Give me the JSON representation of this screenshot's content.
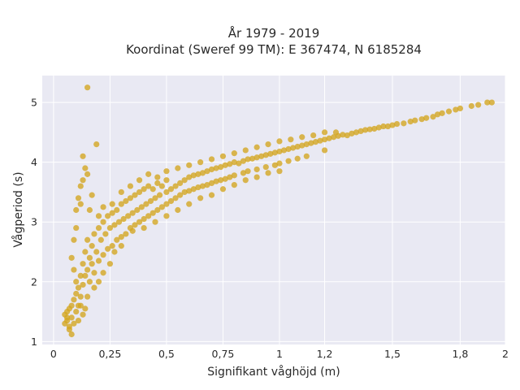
{
  "chart_data": {
    "type": "scatter",
    "title_lines": [
      "År 1979 - 2019",
      "Koordinat (Sweref 99 TM): E 367474, N 6185284"
    ],
    "xlabel": "Signifikant våghöjd (m)",
    "ylabel": "Vågperiod (s)",
    "xlim": [
      -0.05,
      2.0
    ],
    "ylim": [
      0.95,
      5.45
    ],
    "x_ticks": [
      0,
      0.25,
      0.5,
      0.75,
      1,
      1.2,
      1.5,
      1.8,
      2
    ],
    "x_tick_labels": [
      "0",
      "0,25",
      "0,5",
      "0,75",
      "1",
      "1,2",
      "1,5",
      "1,8",
      "2"
    ],
    "y_ticks": [
      1,
      2,
      3,
      4,
      5
    ],
    "y_tick_labels": [
      "1",
      "2",
      "3",
      "4",
      "5"
    ],
    "grid": true,
    "colors": {
      "plot_bg": "#e9e9f3",
      "grid": "#ffffff",
      "point": "#d4a51e"
    },
    "points": [
      [
        0.05,
        1.45
      ],
      [
        0.05,
        1.3
      ],
      [
        0.06,
        1.5
      ],
      [
        0.06,
        1.35
      ],
      [
        0.07,
        1.25
      ],
      [
        0.07,
        1.55
      ],
      [
        0.08,
        1.4
      ],
      [
        0.08,
        1.6
      ],
      [
        0.09,
        1.7
      ],
      [
        0.09,
        1.3
      ],
      [
        0.1,
        1.5
      ],
      [
        0.1,
        1.8
      ],
      [
        0.1,
        2.0
      ],
      [
        0.11,
        1.9
      ],
      [
        0.11,
        1.6
      ],
      [
        0.12,
        2.1
      ],
      [
        0.12,
        1.75
      ],
      [
        0.13,
        2.3
      ],
      [
        0.13,
        1.95
      ],
      [
        0.14,
        2.5
      ],
      [
        0.14,
        2.1
      ],
      [
        0.15,
        2.7
      ],
      [
        0.15,
        2.2
      ],
      [
        0.16,
        2.4
      ],
      [
        0.16,
        2.0
      ],
      [
        0.17,
        2.6
      ],
      [
        0.17,
        2.3
      ],
      [
        0.18,
        2.8
      ],
      [
        0.18,
        2.15
      ],
      [
        0.19,
        2.5
      ],
      [
        0.2,
        2.9
      ],
      [
        0.2,
        2.35
      ],
      [
        0.21,
        2.7
      ],
      [
        0.22,
        3.0
      ],
      [
        0.22,
        2.45
      ],
      [
        0.23,
        2.8
      ],
      [
        0.24,
        3.1
      ],
      [
        0.24,
        2.55
      ],
      [
        0.25,
        2.9
      ],
      [
        0.26,
        3.15
      ],
      [
        0.26,
        2.6
      ],
      [
        0.27,
        2.95
      ],
      [
        0.28,
        3.2
      ],
      [
        0.28,
        2.7
      ],
      [
        0.29,
        3.0
      ],
      [
        0.3,
        3.3
      ],
      [
        0.3,
        2.75
      ],
      [
        0.31,
        3.05
      ],
      [
        0.32,
        3.35
      ],
      [
        0.32,
        2.8
      ],
      [
        0.33,
        3.1
      ],
      [
        0.34,
        3.4
      ],
      [
        0.34,
        2.9
      ],
      [
        0.35,
        3.15
      ],
      [
        0.36,
        3.45
      ],
      [
        0.36,
        2.95
      ],
      [
        0.37,
        3.2
      ],
      [
        0.38,
        3.5
      ],
      [
        0.38,
        3.0
      ],
      [
        0.39,
        3.25
      ],
      [
        0.4,
        3.55
      ],
      [
        0.4,
        3.05
      ],
      [
        0.41,
        3.3
      ],
      [
        0.42,
        3.6
      ],
      [
        0.42,
        3.1
      ],
      [
        0.43,
        3.35
      ],
      [
        0.44,
        3.55
      ],
      [
        0.44,
        3.15
      ],
      [
        0.45,
        3.4
      ],
      [
        0.46,
        3.65
      ],
      [
        0.46,
        3.2
      ],
      [
        0.47,
        3.45
      ],
      [
        0.48,
        3.6
      ],
      [
        0.48,
        3.25
      ],
      [
        0.5,
        3.5
      ],
      [
        0.5,
        3.7
      ],
      [
        0.5,
        3.3
      ],
      [
        0.52,
        3.55
      ],
      [
        0.52,
        3.35
      ],
      [
        0.54,
        3.6
      ],
      [
        0.54,
        3.4
      ],
      [
        0.56,
        3.65
      ],
      [
        0.56,
        3.45
      ],
      [
        0.58,
        3.7
      ],
      [
        0.58,
        3.5
      ],
      [
        0.6,
        3.75
      ],
      [
        0.6,
        3.52
      ],
      [
        0.62,
        3.78
      ],
      [
        0.62,
        3.55
      ],
      [
        0.64,
        3.8
      ],
      [
        0.64,
        3.58
      ],
      [
        0.66,
        3.82
      ],
      [
        0.66,
        3.6
      ],
      [
        0.68,
        3.85
      ],
      [
        0.68,
        3.62
      ],
      [
        0.7,
        3.88
      ],
      [
        0.7,
        3.65
      ],
      [
        0.72,
        3.9
      ],
      [
        0.72,
        3.68
      ],
      [
        0.74,
        3.92
      ],
      [
        0.74,
        3.7
      ],
      [
        0.76,
        3.95
      ],
      [
        0.76,
        3.72
      ],
      [
        0.78,
        3.97
      ],
      [
        0.78,
        3.75
      ],
      [
        0.8,
        4.0
      ],
      [
        0.8,
        3.78
      ],
      [
        0.82,
        3.98
      ],
      [
        0.84,
        4.02
      ],
      [
        0.84,
        3.82
      ],
      [
        0.86,
        4.05
      ],
      [
        0.86,
        3.85
      ],
      [
        0.88,
        4.06
      ],
      [
        0.9,
        4.08
      ],
      [
        0.9,
        3.88
      ],
      [
        0.92,
        4.1
      ],
      [
        0.94,
        4.12
      ],
      [
        0.94,
        3.92
      ],
      [
        0.96,
        4.14
      ],
      [
        0.98,
        4.16
      ],
      [
        0.98,
        3.95
      ],
      [
        1.0,
        4.18
      ],
      [
        1.0,
        3.98
      ],
      [
        1.02,
        4.2
      ],
      [
        1.04,
        4.22
      ],
      [
        1.04,
        4.02
      ],
      [
        1.06,
        4.24
      ],
      [
        1.08,
        4.26
      ],
      [
        1.08,
        4.06
      ],
      [
        1.1,
        4.28
      ],
      [
        1.12,
        4.3
      ],
      [
        1.12,
        4.1
      ],
      [
        1.14,
        4.32
      ],
      [
        1.16,
        4.34
      ],
      [
        1.18,
        4.36
      ],
      [
        1.2,
        4.38
      ],
      [
        1.2,
        4.2
      ],
      [
        1.22,
        4.4
      ],
      [
        1.24,
        4.42
      ],
      [
        1.26,
        4.44
      ],
      [
        1.28,
        4.46
      ],
      [
        1.3,
        4.45
      ],
      [
        1.32,
        4.48
      ],
      [
        1.34,
        4.5
      ],
      [
        1.36,
        4.52
      ],
      [
        1.38,
        4.54
      ],
      [
        1.4,
        4.55
      ],
      [
        1.42,
        4.56
      ],
      [
        1.44,
        4.58
      ],
      [
        1.46,
        4.6
      ],
      [
        1.48,
        4.6
      ],
      [
        1.5,
        4.62
      ],
      [
        1.52,
        4.64
      ],
      [
        1.55,
        4.65
      ],
      [
        1.58,
        4.68
      ],
      [
        1.6,
        4.7
      ],
      [
        1.63,
        4.72
      ],
      [
        1.65,
        4.74
      ],
      [
        1.68,
        4.76
      ],
      [
        1.7,
        4.8
      ],
      [
        1.72,
        4.82
      ],
      [
        1.75,
        4.85
      ],
      [
        1.78,
        4.88
      ],
      [
        1.8,
        4.9
      ],
      [
        1.85,
        4.94
      ],
      [
        1.88,
        4.96
      ],
      [
        1.92,
        5.0
      ],
      [
        1.94,
        5.0
      ],
      [
        0.15,
        5.25
      ],
      [
        0.19,
        4.3
      ],
      [
        0.13,
        4.1
      ],
      [
        0.14,
        3.9
      ],
      [
        0.12,
        3.6
      ],
      [
        0.11,
        3.4
      ],
      [
        0.13,
        3.7
      ],
      [
        0.1,
        3.2
      ],
      [
        0.12,
        3.3
      ],
      [
        0.09,
        2.7
      ],
      [
        0.1,
        2.9
      ],
      [
        0.08,
        2.4
      ],
      [
        0.09,
        2.2
      ],
      [
        0.15,
        3.8
      ],
      [
        0.17,
        3.45
      ],
      [
        0.16,
        3.2
      ],
      [
        0.2,
        3.1
      ],
      [
        0.22,
        3.25
      ],
      [
        0.26,
        3.3
      ],
      [
        0.3,
        3.5
      ],
      [
        0.34,
        3.6
      ],
      [
        0.38,
        3.7
      ],
      [
        0.42,
        3.8
      ],
      [
        0.46,
        3.75
      ],
      [
        0.5,
        3.85
      ],
      [
        0.55,
        3.9
      ],
      [
        0.6,
        3.95
      ],
      [
        0.65,
        4.0
      ],
      [
        0.7,
        4.05
      ],
      [
        0.75,
        4.1
      ],
      [
        0.8,
        4.15
      ],
      [
        0.85,
        4.2
      ],
      [
        0.9,
        4.25
      ],
      [
        0.95,
        4.3
      ],
      [
        1.0,
        4.35
      ],
      [
        1.05,
        4.38
      ],
      [
        1.1,
        4.42
      ],
      [
        1.15,
        4.45
      ],
      [
        1.2,
        4.5
      ],
      [
        1.25,
        4.5
      ],
      [
        0.35,
        2.85
      ],
      [
        0.4,
        2.9
      ],
      [
        0.45,
        3.0
      ],
      [
        0.5,
        3.1
      ],
      [
        0.55,
        3.2
      ],
      [
        0.6,
        3.3
      ],
      [
        0.65,
        3.4
      ],
      [
        0.7,
        3.45
      ],
      [
        0.75,
        3.55
      ],
      [
        0.8,
        3.62
      ],
      [
        0.85,
        3.7
      ],
      [
        0.9,
        3.75
      ],
      [
        0.95,
        3.82
      ],
      [
        1.0,
        3.85
      ],
      [
        0.27,
        2.5
      ],
      [
        0.3,
        2.6
      ],
      [
        0.2,
        2.0
      ],
      [
        0.22,
        2.15
      ],
      [
        0.25,
        2.3
      ],
      [
        0.18,
        1.9
      ],
      [
        0.15,
        1.75
      ],
      [
        0.12,
        1.6
      ],
      [
        0.14,
        1.55
      ],
      [
        0.07,
        1.2
      ],
      [
        0.08,
        1.12
      ],
      [
        0.06,
        1.4
      ],
      [
        0.11,
        1.35
      ],
      [
        0.13,
        1.45
      ]
    ]
  }
}
